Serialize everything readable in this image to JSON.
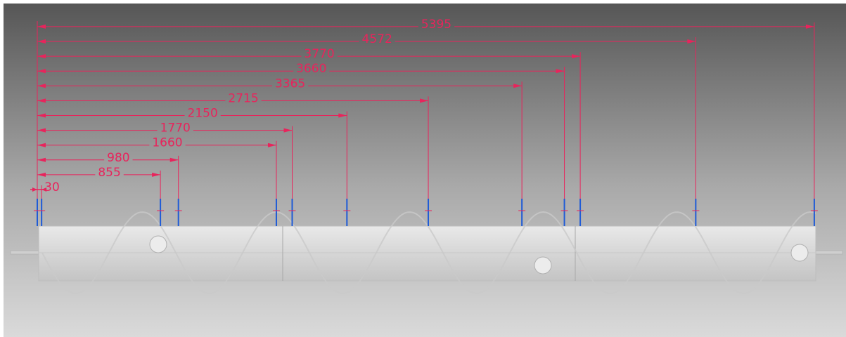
{
  "dimensions": [
    30,
    855,
    980,
    1660,
    1770,
    2150,
    2715,
    3365,
    3660,
    3770,
    4572,
    5395
  ]
}
